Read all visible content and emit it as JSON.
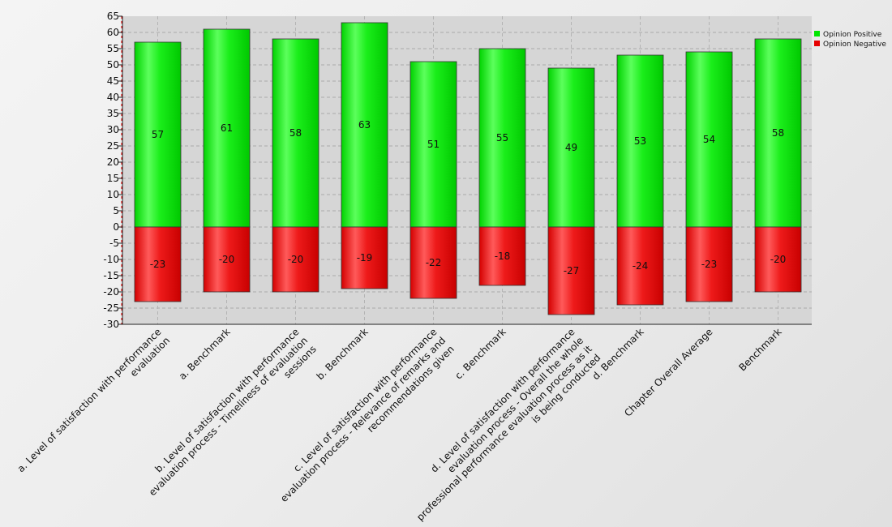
{
  "chart_data": {
    "type": "bar",
    "stacked": true,
    "title": "",
    "xlabel": "",
    "ylabel": "",
    "ylim": [
      -30,
      65
    ],
    "y_ticks": [
      65,
      60,
      55,
      50,
      45,
      40,
      35,
      30,
      25,
      20,
      15,
      10,
      5,
      0,
      -5,
      -10,
      -15,
      -20,
      -25,
      -30
    ],
    "grid": true,
    "legend_position": "top-right",
    "categories": [
      "a. Level of satisfaction with performance evaluation",
      "a. Benchmark",
      "b. Level of satisfaction with performance evaluation process - Timeliness of evaluation sessions",
      "b. Benchmark",
      "c. Level of satisfaction with performance evaluation process - Relevance of remarks and recommendations given",
      "c. Benchmark",
      "d. Level of satisfaction with performance evaluation process - Overall the whole professional performance evaluation process as it is being conducted",
      "d. Benchmark",
      "Chapter Overall Average",
      "Benchmark"
    ],
    "category_label_lines": [
      [
        "a. Level of satisfaction with performance",
        "evaluation"
      ],
      [
        "a. Benchmark"
      ],
      [
        "b. Level of satisfaction with performance",
        "evaluation process - Timeliness of evaluation",
        "sessions"
      ],
      [
        "b. Benchmark"
      ],
      [
        "c. Level of satisfaction with performance",
        "evaluation process - Relevance of remarks and",
        "recommendations given"
      ],
      [
        "c. Benchmark"
      ],
      [
        "d. Level of satisfaction with performance",
        "evaluation process - Overall the whole",
        "professional performance evaluation process as it",
        "is being conducted"
      ],
      [
        "d. Benchmark"
      ],
      [
        "Chapter Overall Average"
      ],
      [
        "Benchmark"
      ]
    ],
    "series": [
      {
        "name": "Opinion Positive",
        "color": "#00e600",
        "values": [
          57,
          61,
          58,
          63,
          51,
          55,
          49,
          53,
          54,
          58
        ]
      },
      {
        "name": "Opinion Negative",
        "color": "#e60000",
        "values": [
          -23,
          -20,
          -20,
          -19,
          -22,
          -18,
          -27,
          -24,
          -23,
          -20
        ]
      }
    ]
  }
}
